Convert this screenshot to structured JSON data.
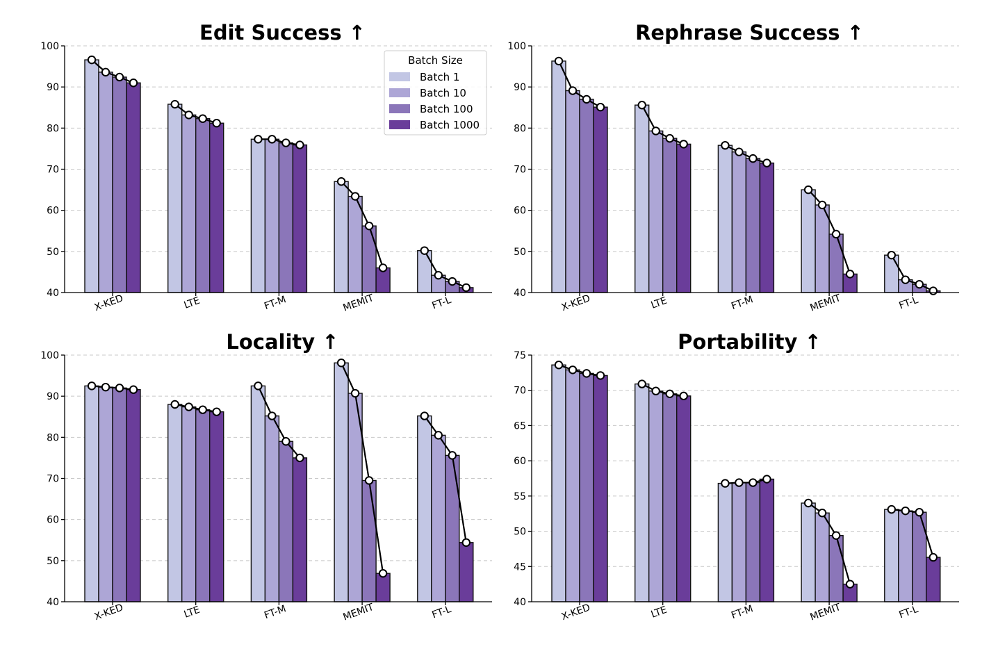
{
  "chart_data": [
    {
      "type": "bar",
      "title": "Edit Success ↑",
      "categories": [
        "X-KED",
        "LTE",
        "FT-M",
        "MEMIT",
        "FT-L"
      ],
      "ylim": [
        40,
        100
      ],
      "yticks": [
        40,
        50,
        60,
        70,
        80,
        90,
        100
      ],
      "grid": "y-dashed",
      "series": [
        {
          "name": "Batch 1",
          "values": [
            96.6,
            85.8,
            77.3,
            67.0,
            50.2
          ]
        },
        {
          "name": "Batch 10",
          "values": [
            93.6,
            83.2,
            77.3,
            63.4,
            44.2
          ]
        },
        {
          "name": "Batch 100",
          "values": [
            92.4,
            82.3,
            76.4,
            56.2,
            42.7
          ]
        },
        {
          "name": "Batch 1000",
          "values": [
            91.0,
            81.2,
            75.9,
            46.0,
            41.2
          ]
        }
      ]
    },
    {
      "type": "bar",
      "title": "Rephrase Success ↑",
      "categories": [
        "X-KED",
        "LTE",
        "FT-M",
        "MEMIT",
        "FT-L"
      ],
      "ylim": [
        40,
        100
      ],
      "yticks": [
        40,
        50,
        60,
        70,
        80,
        90,
        100
      ],
      "grid": "y-dashed",
      "series": [
        {
          "name": "Batch 1",
          "values": [
            96.3,
            85.6,
            75.8,
            65.0,
            49.1
          ]
        },
        {
          "name": "Batch 10",
          "values": [
            89.1,
            79.3,
            74.2,
            61.3,
            43.1
          ]
        },
        {
          "name": "Batch 100",
          "values": [
            87.0,
            77.5,
            72.6,
            54.2,
            42.0
          ]
        },
        {
          "name": "Batch 1000",
          "values": [
            85.1,
            76.1,
            71.5,
            44.5,
            40.4
          ]
        }
      ]
    },
    {
      "type": "bar",
      "title": "Locality ↑",
      "categories": [
        "X-KED",
        "LTE",
        "FT-M",
        "MEMIT",
        "FT-L"
      ],
      "ylim": [
        40,
        100
      ],
      "yticks": [
        40,
        50,
        60,
        70,
        80,
        90,
        100
      ],
      "grid": "y-dashed",
      "series": [
        {
          "name": "Batch 1",
          "values": [
            92.5,
            88.0,
            92.5,
            98.1,
            85.2
          ]
        },
        {
          "name": "Batch 10",
          "values": [
            92.2,
            87.4,
            85.2,
            90.7,
            80.5
          ]
        },
        {
          "name": "Batch 100",
          "values": [
            92.0,
            86.7,
            79.0,
            69.5,
            75.6
          ]
        },
        {
          "name": "Batch 1000",
          "values": [
            91.6,
            86.2,
            75.0,
            46.9,
            54.4
          ]
        }
      ]
    },
    {
      "type": "bar",
      "title": "Portability ↑",
      "categories": [
        "X-KED",
        "LTE",
        "FT-M",
        "MEMIT",
        "FT-L"
      ],
      "ylim": [
        40,
        75
      ],
      "yticks": [
        40,
        45,
        50,
        55,
        60,
        65,
        70,
        75
      ],
      "grid": "y-dashed",
      "series": [
        {
          "name": "Batch 1",
          "values": [
            73.6,
            70.9,
            56.8,
            54.0,
            53.1
          ]
        },
        {
          "name": "Batch 10",
          "values": [
            72.9,
            69.9,
            56.9,
            52.6,
            52.9
          ]
        },
        {
          "name": "Batch 100",
          "values": [
            72.4,
            69.5,
            56.9,
            49.4,
            52.7
          ]
        },
        {
          "name": "Batch 1000",
          "values": [
            72.1,
            69.2,
            57.4,
            42.5,
            46.3
          ]
        }
      ]
    }
  ],
  "legend": {
    "title": "Batch Size",
    "placement": "top-right",
    "entries": [
      "Batch 1",
      "Batch 10",
      "Batch 100",
      "Batch 1000"
    ]
  },
  "colors": {
    "Batch 1": "#c2c6e4",
    "Batch 10": "#ada6d6",
    "Batch 100": "#8b76b9",
    "Batch 1000": "#6a3d9a",
    "grid": "#c8c8c8",
    "marker_fill": "#ffffff"
  }
}
